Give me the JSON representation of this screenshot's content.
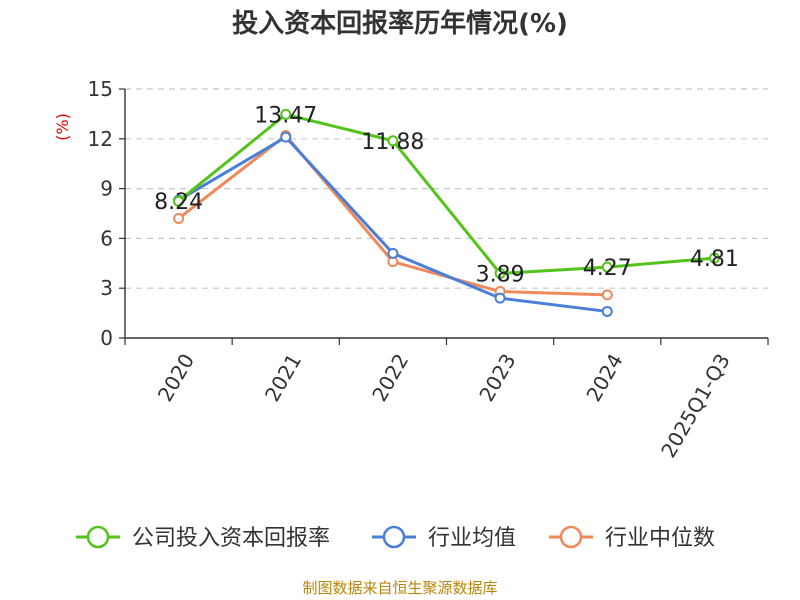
{
  "chart_data": {
    "type": "line",
    "title": "投入资本回报率历年情况(%)",
    "xlabel": "",
    "ylabel": "(%)",
    "categories": [
      "2020",
      "2021",
      "2022",
      "2023",
      "2024",
      "2025Q1-Q3"
    ],
    "ylim": [
      0,
      15
    ],
    "yticks": [
      0,
      3,
      6,
      9,
      12,
      15
    ],
    "grid": "horizontal-dashed",
    "series": [
      {
        "name": "公司投入资本回报率",
        "color": "#52c41a",
        "values": [
          8.24,
          13.47,
          11.88,
          3.89,
          4.27,
          4.81
        ],
        "labels": [
          "8.24",
          "13.47",
          "11.88",
          "3.89",
          "4.27",
          "4.81"
        ]
      },
      {
        "name": "行业均值",
        "color": "#4a7fd8",
        "values": [
          8.3,
          12.1,
          5.1,
          2.4,
          1.6,
          null
        ]
      },
      {
        "name": "行业中位数",
        "color": "#f0895a",
        "values": [
          7.2,
          12.2,
          4.6,
          2.8,
          2.6,
          null
        ]
      }
    ],
    "legend_position": "bottom",
    "source": "制图数据来自恒生聚源数据库"
  }
}
